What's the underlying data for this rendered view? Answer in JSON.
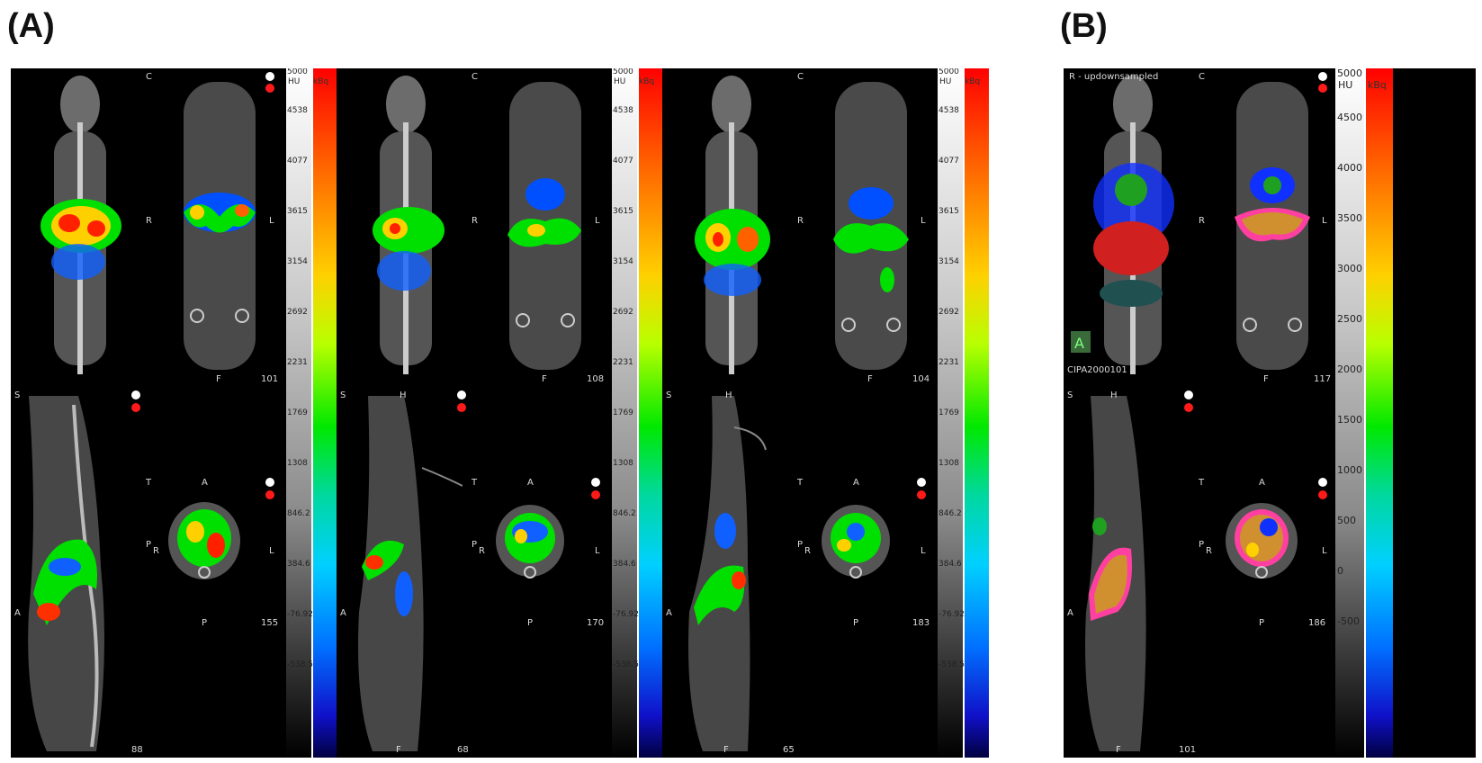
{
  "labels": {
    "a": "(A)",
    "b": "(B)"
  },
  "scale_a": {
    "hu_label": "HU",
    "kbq_label": "kBq",
    "top": "5000",
    "hu_ticks": [
      "4538",
      "4077",
      "3615",
      "3154",
      "2692",
      "2231",
      "1769",
      "1308",
      "846.2",
      "384.6",
      "-76.92",
      "-538.5"
    ]
  },
  "scale_b": {
    "hu_label": "HU",
    "kbq_label": "kBq",
    "top": "5000",
    "hu_ticks": [
      "4500",
      "4000",
      "3500",
      "3000",
      "2500",
      "2000",
      "1500",
      "1000",
      "500",
      "0",
      "-500"
    ]
  },
  "subjects": [
    {
      "coronal_num": "101",
      "sagittal_num": "88",
      "axial_num": "155"
    },
    {
      "coronal_num": "108",
      "sagittal_num": "68",
      "axial_num": "170"
    },
    {
      "coronal_num": "104",
      "sagittal_num": "65",
      "axial_num": "183"
    }
  ],
  "panel_b": {
    "title": "R - updownsampled",
    "series_id": "CIPA2000101",
    "badge": "A",
    "coronal_num": "117",
    "sagittal_num": "101",
    "axial_num": "186"
  },
  "orient": {
    "c": "C",
    "r": "R",
    "l": "L",
    "f": "F",
    "s": "S",
    "h": "H",
    "t": "T",
    "a": "A",
    "p": "P"
  }
}
